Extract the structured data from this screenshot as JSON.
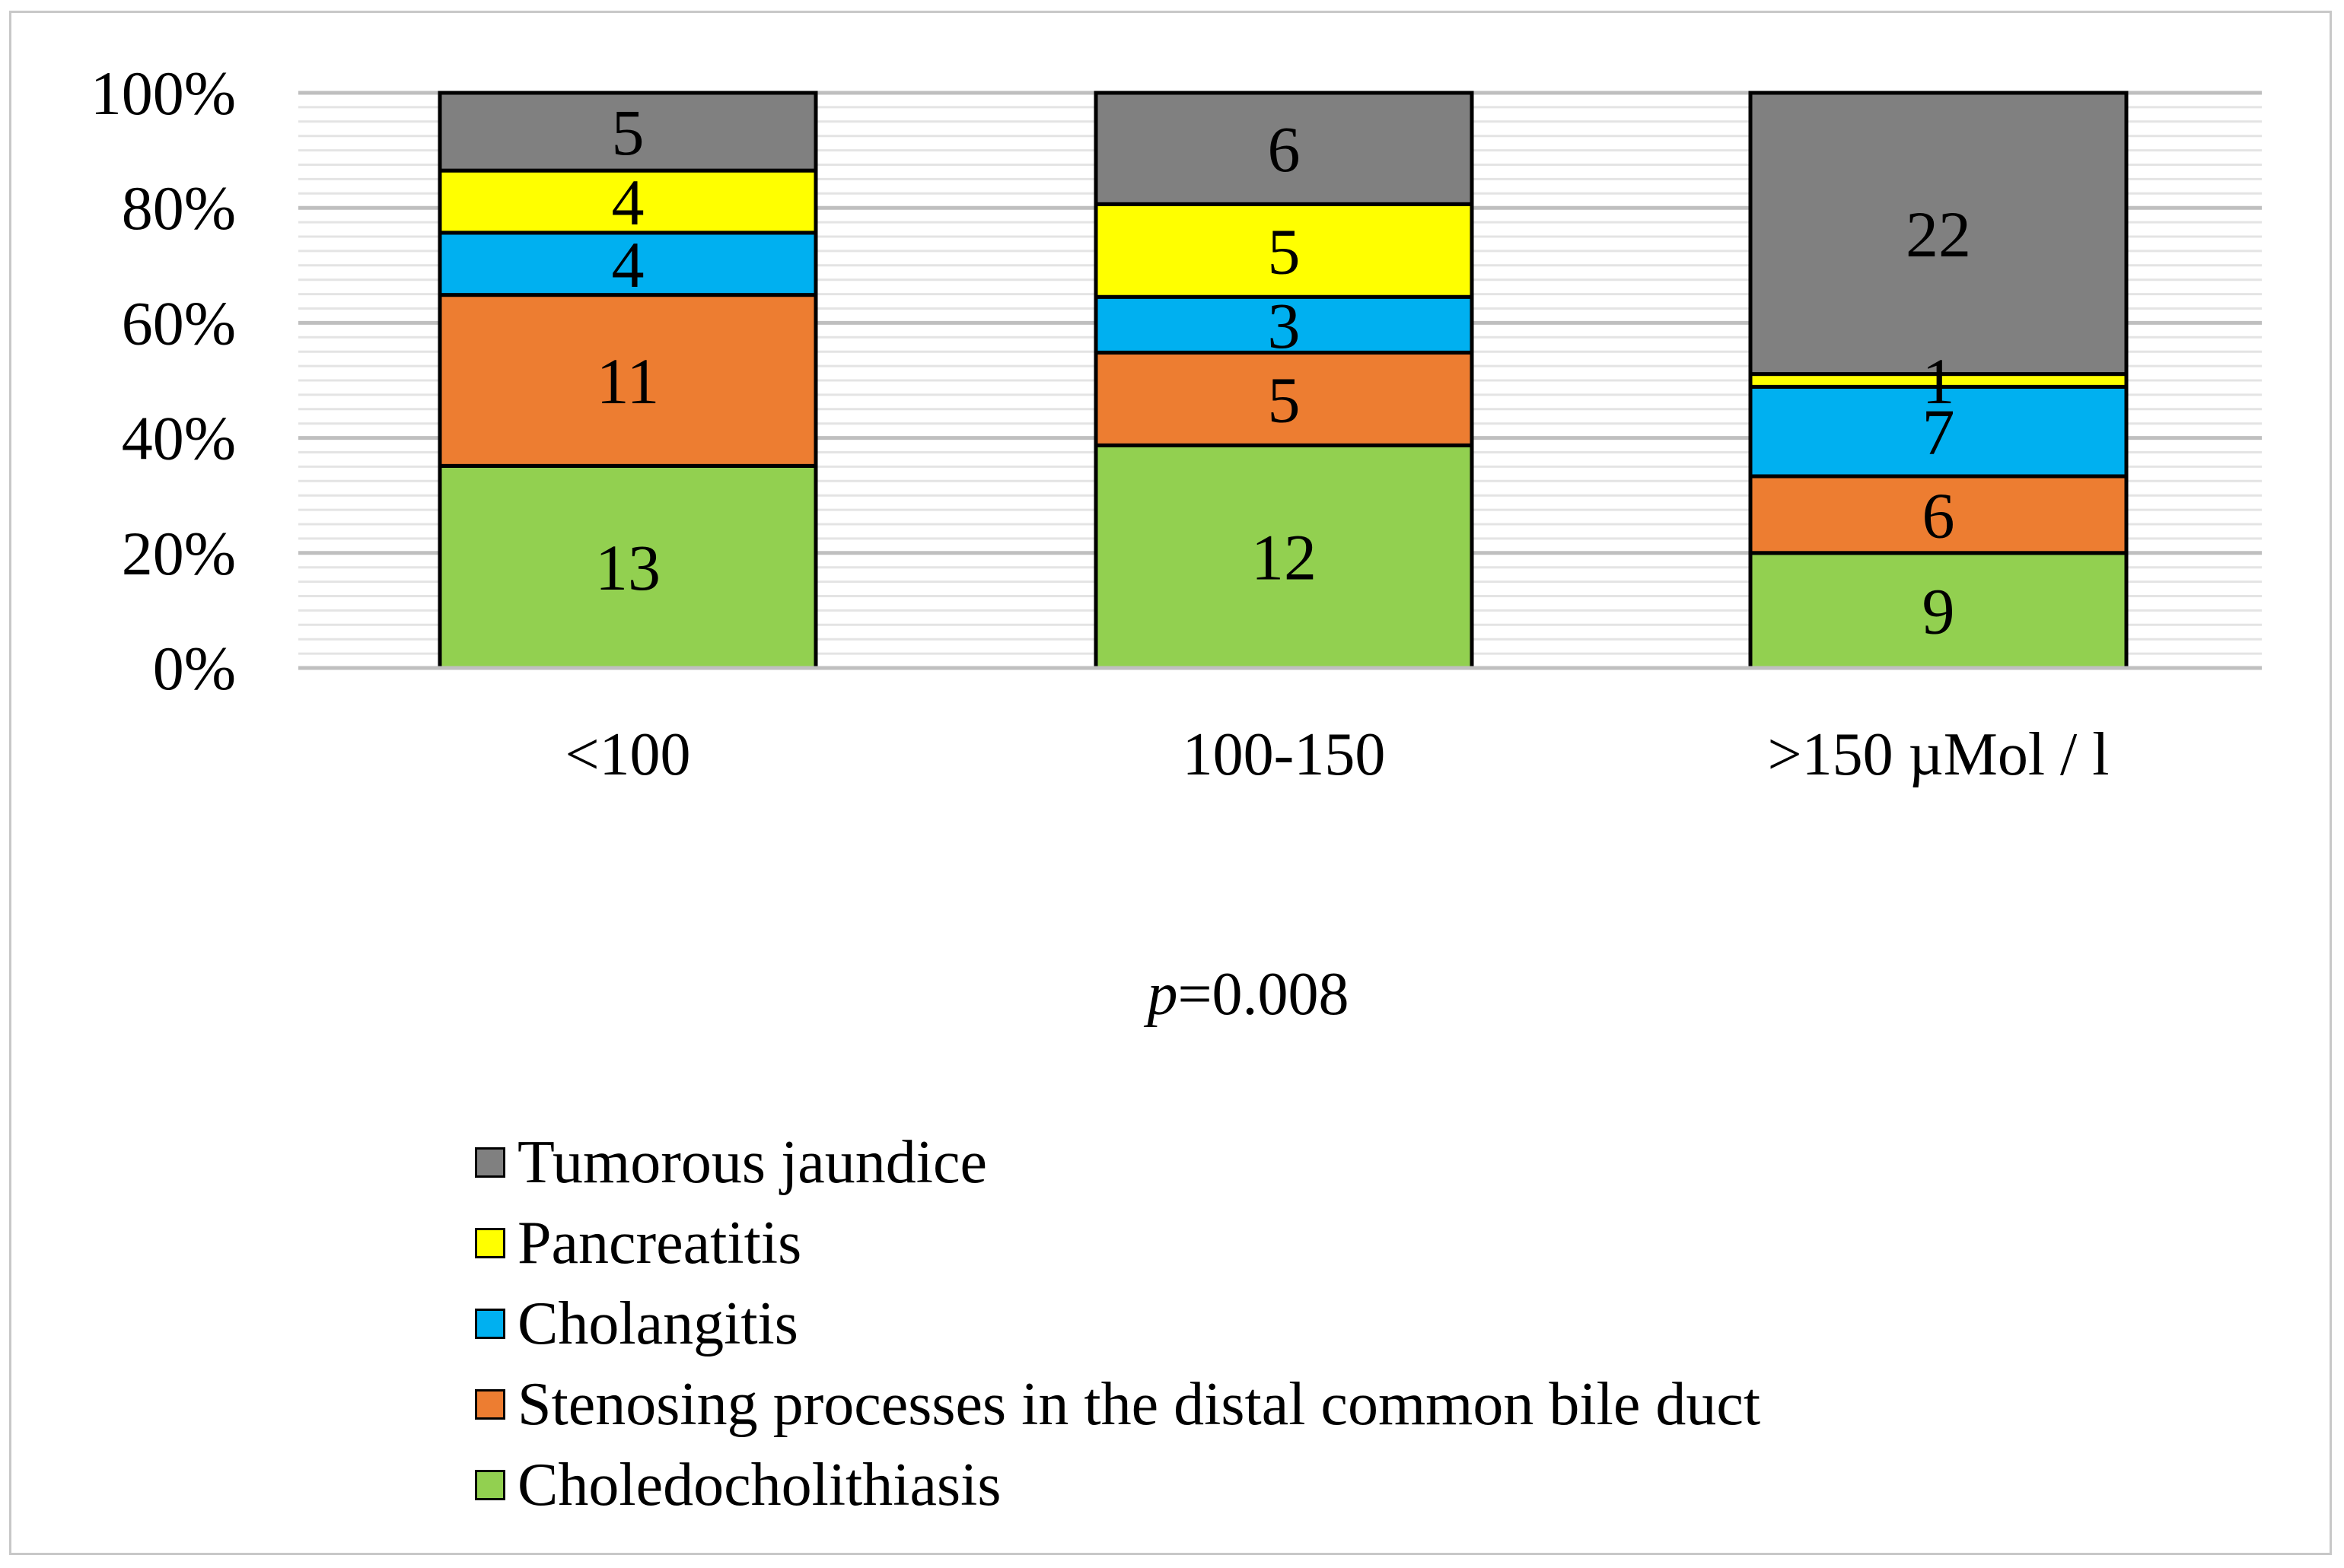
{
  "chart_data": {
    "type": "bar",
    "stacked": true,
    "percent_stacked": true,
    "title": "",
    "categories": [
      "<100",
      "100-150",
      ">150 µMol / l"
    ],
    "series": [
      {
        "name": "Choledocholithiasis",
        "values": [
          13,
          12,
          9
        ],
        "color": "#92d050"
      },
      {
        "name": "Stenosing processes in the distal common bile duct",
        "values": [
          11,
          5,
          6
        ],
        "color": "#ed7d31"
      },
      {
        "name": "Cholangitis",
        "values": [
          4,
          3,
          7
        ],
        "color": "#00b0f0"
      },
      {
        "name": "Pancreatitis",
        "values": [
          4,
          5,
          1
        ],
        "color": "#ffff00"
      },
      {
        "name": "Tumorous jaundice",
        "values": [
          5,
          6,
          22
        ],
        "color": "#808080"
      }
    ],
    "y_ticks": [
      "0%",
      "20%",
      "40%",
      "60%",
      "80%",
      "100%"
    ],
    "ylim": [
      0,
      100
    ],
    "grid": true,
    "legend_position": "bottom",
    "annotation": {
      "italic": "p",
      "rest": "=0.008"
    }
  }
}
